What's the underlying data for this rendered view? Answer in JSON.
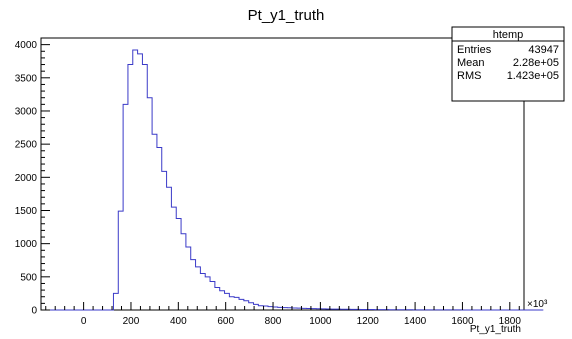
{
  "chart_data": {
    "type": "bar",
    "title": "Pt_y1_truth",
    "xlabel": "Pt_y1_truth",
    "ylabel": "",
    "x_exponent_label": "×10³",
    "xlim": [
      -180,
      1860
    ],
    "ylim": [
      0,
      4100
    ],
    "x_tick_labels": [
      "0",
      "200",
      "400",
      "600",
      "800",
      "1000",
      "1200",
      "1400",
      "1600",
      "1800"
    ],
    "y_tick_labels": [
      "0",
      "500",
      "1000",
      "1500",
      "2000",
      "2500",
      "3000",
      "3500",
      "4000"
    ],
    "grid": false,
    "legend": "none",
    "bin_width": 20.4,
    "bin_start": -180,
    "values": [
      0,
      0,
      0,
      0,
      0,
      0,
      0,
      0,
      0,
      0,
      0,
      0,
      0,
      0,
      0,
      250,
      1490,
      3100,
      3700,
      3920,
      3860,
      3700,
      3200,
      2650,
      2450,
      2090,
      1850,
      1550,
      1380,
      1150,
      950,
      760,
      650,
      550,
      500,
      430,
      340,
      290,
      250,
      200,
      190,
      160,
      140,
      110,
      85,
      65,
      60,
      50,
      45,
      40,
      35,
      33,
      30,
      28,
      25,
      22,
      20,
      18,
      17,
      15,
      14,
      13,
      12,
      11,
      10,
      9,
      8,
      8,
      7,
      6,
      5,
      5,
      4,
      4,
      3,
      3,
      3,
      2,
      2,
      2,
      2,
      1,
      1,
      1,
      1,
      1,
      1,
      0,
      0,
      0,
      0,
      0,
      0,
      0,
      0,
      0,
      0,
      0,
      0,
      0,
      0,
      0,
      0,
      0,
      0
    ],
    "line_color": "#3a3ac8",
    "stats_box": {
      "name": "htemp",
      "rows": [
        {
          "label": "Entries",
          "value": "43947"
        },
        {
          "label": "Mean",
          "value": "2.28e+05"
        },
        {
          "label": "RMS",
          "value": "1.423e+05"
        }
      ]
    }
  }
}
